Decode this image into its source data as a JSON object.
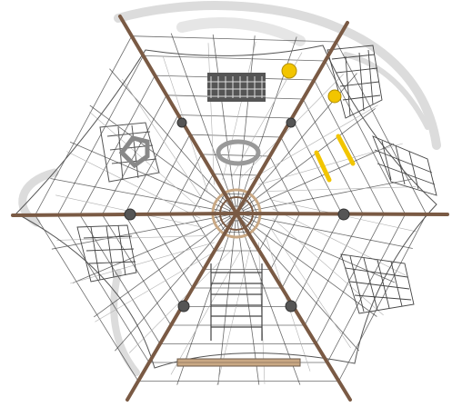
{
  "image": {
    "subject": "rope-net-climbing-frame",
    "colors": {
      "background": "#ffffff",
      "mast": "#7a5a44",
      "rope": "#3a3a3a",
      "rope_light": "#9c9c9c",
      "accent_yellow": "#f2c500",
      "beam": "#c9a884",
      "shadow": "#d8d8d8"
    }
  }
}
